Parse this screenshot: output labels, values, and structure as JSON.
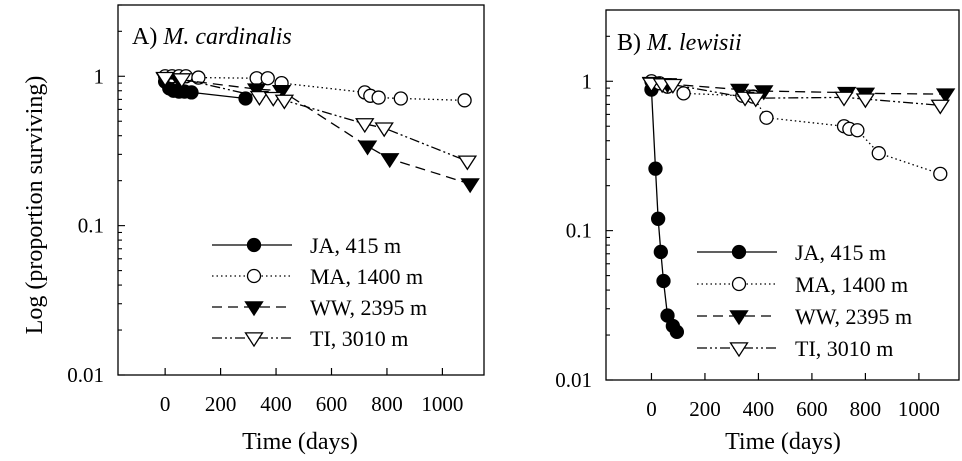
{
  "ylabel": "Log (proportion surviving)",
  "chart_data": [
    {
      "type": "line",
      "panel_letter": "A)",
      "species": "M. cardinalis",
      "xlabel": "Time (days)",
      "x_ticks": [
        "0",
        "200",
        "400",
        "600",
        "800",
        "1000"
      ],
      "x_tick_values": [
        0,
        200,
        400,
        600,
        800,
        1000
      ],
      "xlim": [
        -170,
        1150
      ],
      "y_scale": "log",
      "y_ticks": [
        "0.01",
        "0.1",
        "1"
      ],
      "y_tick_values": [
        0.01,
        0.1,
        1
      ],
      "ylim": [
        0.01,
        3
      ],
      "legend_position": "lower-left",
      "series": [
        {
          "name": "JA, 415 m",
          "style": "solid",
          "marker": "filled-circle",
          "x": [
            0,
            15,
            30,
            50,
            70,
            95,
            290
          ],
          "y": [
            0.92,
            0.83,
            0.8,
            0.79,
            0.79,
            0.78,
            0.71
          ]
        },
        {
          "name": "MA, 1400 m",
          "style": "dotted",
          "marker": "open-circle",
          "x": [
            0,
            25,
            50,
            75,
            120,
            330,
            370,
            420,
            720,
            740,
            770,
            850,
            1080
          ],
          "y": [
            1.0,
            1.0,
            1.0,
            1.0,
            0.98,
            0.97,
            0.97,
            0.9,
            0.78,
            0.74,
            0.72,
            0.71,
            0.69
          ]
        },
        {
          "name": "WW, 2395 m",
          "style": "dashed",
          "marker": "filled-triangle-down",
          "x": [
            0,
            50,
            330,
            420,
            730,
            810,
            1100
          ],
          "y": [
            0.97,
            0.95,
            0.82,
            0.8,
            0.34,
            0.28,
            0.19
          ]
        },
        {
          "name": "TI, 3010 m",
          "style": "dash-dot-dot",
          "marker": "open-triangle-down",
          "x": [
            0,
            60,
            340,
            390,
            430,
            720,
            790,
            1090
          ],
          "y": [
            0.98,
            0.96,
            0.73,
            0.72,
            0.69,
            0.48,
            0.45,
            0.27
          ]
        }
      ]
    },
    {
      "type": "line",
      "panel_letter": "B)",
      "species": "M. lewisii",
      "xlabel": "Time (days)",
      "x_ticks": [
        "0",
        "200",
        "400",
        "600",
        "800",
        "1000"
      ],
      "x_tick_values": [
        0,
        200,
        400,
        600,
        800,
        1000
      ],
      "xlim": [
        -170,
        1150
      ],
      "y_scale": "log",
      "y_ticks": [
        "0.01",
        "0.1",
        "1"
      ],
      "y_tick_values": [
        0.01,
        0.1,
        1
      ],
      "ylim": [
        0.01,
        3
      ],
      "legend_position": "lower-left",
      "series": [
        {
          "name": "JA, 415 m",
          "style": "solid",
          "marker": "filled-circle",
          "x": [
            0,
            15,
            25,
            35,
            45,
            60,
            80,
            95
          ],
          "y": [
            0.88,
            0.26,
            0.12,
            0.072,
            0.046,
            0.027,
            0.023,
            0.021
          ]
        },
        {
          "name": "MA, 1400 m",
          "style": "dotted",
          "marker": "open-circle",
          "x": [
            0,
            30,
            60,
            120,
            340,
            380,
            430,
            720,
            740,
            770,
            850,
            1080
          ],
          "y": [
            1.0,
            0.97,
            0.92,
            0.83,
            0.8,
            0.79,
            0.57,
            0.5,
            0.48,
            0.47,
            0.33,
            0.24
          ]
        },
        {
          "name": "WW, 2395 m",
          "style": "dashed",
          "marker": "filled-triangle-down",
          "x": [
            0,
            60,
            330,
            420,
            730,
            800,
            1100
          ],
          "y": [
            0.98,
            0.96,
            0.88,
            0.86,
            0.84,
            0.83,
            0.82
          ]
        },
        {
          "name": "TI, 3010 m",
          "style": "dash-dot-dot",
          "marker": "open-triangle-down",
          "x": [
            0,
            40,
            80,
            350,
            390,
            720,
            800,
            1080
          ],
          "y": [
            0.97,
            0.96,
            0.95,
            0.78,
            0.77,
            0.78,
            0.76,
            0.69
          ]
        }
      ]
    }
  ]
}
